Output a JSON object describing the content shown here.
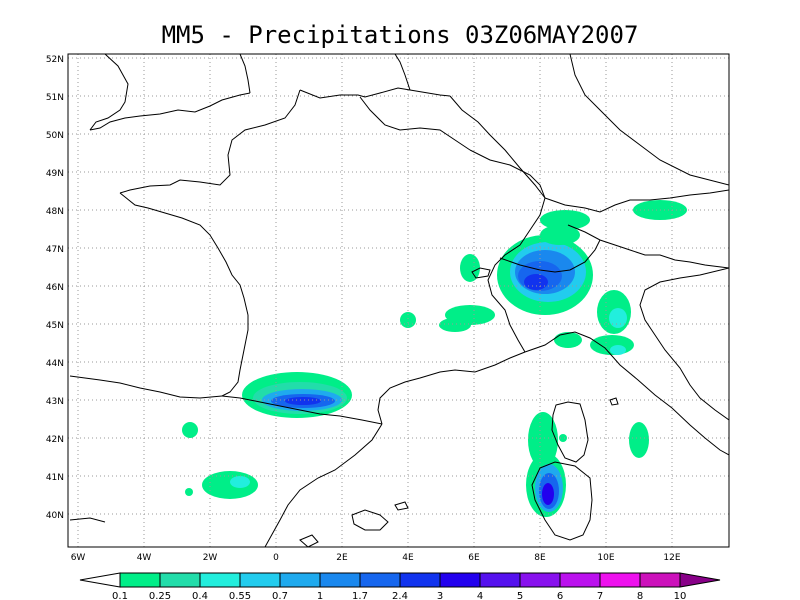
{
  "title": "MM5 - Precipitations 03Z06MAY2007",
  "lat_labels": [
    "52N",
    "51N",
    "50N",
    "49N",
    "48N",
    "47N",
    "46N",
    "45N",
    "44N",
    "43N",
    "42N",
    "41N",
    "40N"
  ],
  "lon_labels": [
    "6W",
    "4W",
    "2W",
    "0",
    "2E",
    "4E",
    "6E",
    "8E",
    "10E",
    "12E"
  ],
  "colorbar": {
    "labels": [
      "0.1",
      "0.25",
      "0.4",
      "0.55",
      "0.7",
      "1",
      "1.7",
      "2.4",
      "3",
      "4",
      "5",
      "6",
      "7",
      "8",
      "10"
    ],
    "colors": [
      "#00ee88",
      "#22ddaa",
      "#22eedd",
      "#22ccee",
      "#1faaee",
      "#1a88ee",
      "#1666ee",
      "#1133ee",
      "#2200ee",
      "#5511ee",
      "#8811ee",
      "#bb11ee",
      "#ee11ee",
      "#cc11bb",
      "#880088"
    ]
  }
}
